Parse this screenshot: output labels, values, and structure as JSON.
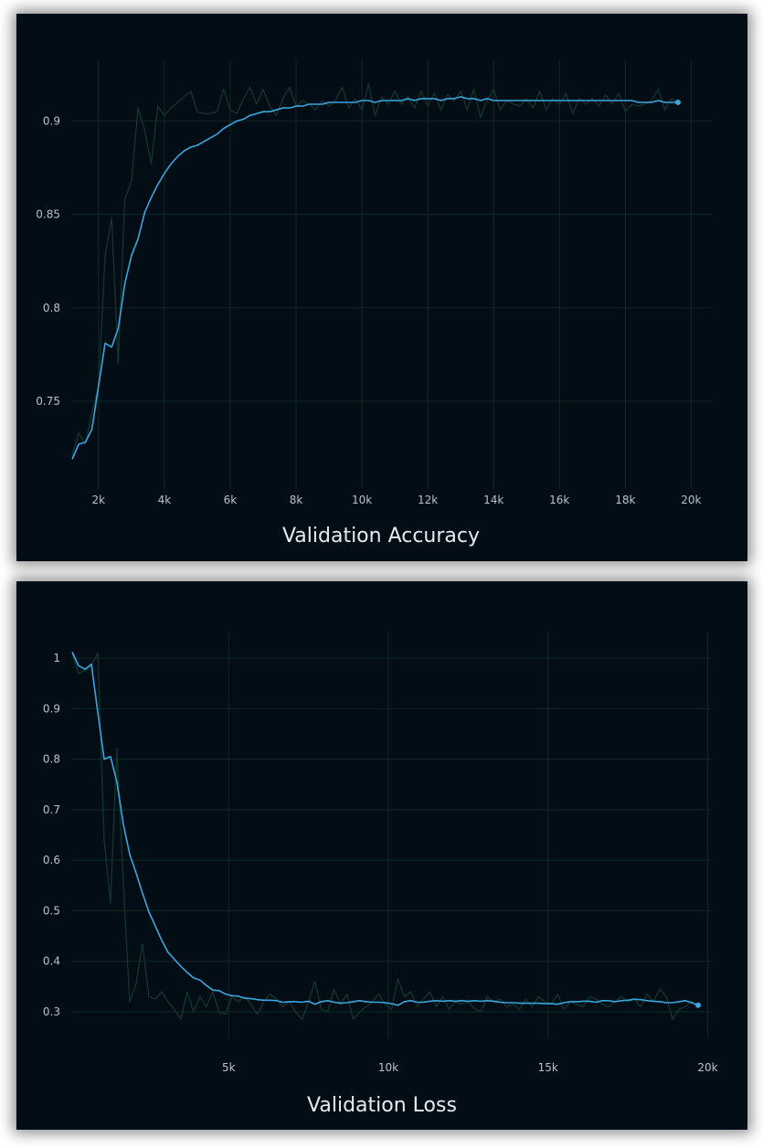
{
  "chart_data": [
    {
      "id": "acc",
      "type": "line",
      "title": "Validation Accuracy",
      "xlabel": "",
      "ylabel": "",
      "xlim": [
        1200,
        20600
      ],
      "ylim": [
        0.703,
        0.933
      ],
      "xticks": [
        2000,
        4000,
        6000,
        8000,
        10000,
        12000,
        14000,
        16000,
        18000,
        20000
      ],
      "xtick_labels": [
        "2k",
        "4k",
        "6k",
        "8k",
        "10k",
        "12k",
        "14k",
        "16k",
        "18k",
        "20k"
      ],
      "yticks": [
        0.75,
        0.8,
        0.85,
        0.9
      ],
      "ytick_labels": [
        "0.75",
        "0.8",
        "0.85",
        "0.9"
      ],
      "grid": true,
      "colors": {
        "smoothed": "#3aa6de",
        "raw": "#10352c",
        "grid": "#0f2a26",
        "background": "#020d16"
      },
      "series": [
        {
          "role": "raw",
          "x": [
            1200,
            1400,
            1600,
            1800,
            2000,
            2200,
            2400,
            2600,
            2800,
            3000,
            3200,
            3400,
            3600,
            3800,
            4000,
            4200,
            4400,
            4600,
            4800,
            5000,
            5200,
            5400,
            5600,
            5800,
            6000,
            6200,
            6400,
            6600,
            6800,
            7000,
            7200,
            7400,
            7600,
            7800,
            8000,
            8200,
            8400,
            8600,
            8800,
            9000,
            9200,
            9400,
            9600,
            9800,
            10000,
            10200,
            10400,
            10600,
            10800,
            11000,
            11200,
            11400,
            11600,
            11800,
            12000,
            12200,
            12400,
            12600,
            12800,
            13000,
            13200,
            13400,
            13600,
            13800,
            14000,
            14200,
            14400,
            14600,
            14800,
            15000,
            15200,
            15400,
            15600,
            15800,
            16000,
            16200,
            16400,
            16600,
            16800,
            17000,
            17200,
            17400,
            17600,
            17800,
            18000,
            18200,
            18400,
            18600,
            18800,
            19000,
            19200,
            19400,
            19600
          ],
          "values": [
            0.721,
            0.733,
            0.727,
            0.744,
            0.758,
            0.828,
            0.848,
            0.77,
            0.858,
            0.868,
            0.907,
            0.895,
            0.877,
            0.908,
            0.903,
            0.907,
            0.91,
            0.913,
            0.916,
            0.905,
            0.904,
            0.904,
            0.905,
            0.917,
            0.906,
            0.904,
            0.912,
            0.918,
            0.909,
            0.917,
            0.908,
            0.903,
            0.912,
            0.918,
            0.908,
            0.911,
            0.909,
            0.906,
            0.911,
            0.908,
            0.911,
            0.918,
            0.907,
            0.912,
            0.906,
            0.92,
            0.903,
            0.913,
            0.909,
            0.916,
            0.909,
            0.913,
            0.907,
            0.916,
            0.908,
            0.915,
            0.906,
            0.914,
            0.911,
            0.916,
            0.906,
            0.917,
            0.902,
            0.911,
            0.917,
            0.906,
            0.911,
            0.909,
            0.908,
            0.912,
            0.907,
            0.916,
            0.906,
            0.912,
            0.909,
            0.915,
            0.904,
            0.912,
            0.909,
            0.912,
            0.908,
            0.914,
            0.909,
            0.915,
            0.905,
            0.909,
            0.908,
            0.909,
            0.911,
            0.917,
            0.906,
            0.912,
            0.91
          ]
        },
        {
          "role": "smoothed",
          "x": [
            1200,
            1400,
            1600,
            1800,
            2000,
            2200,
            2400,
            2600,
            2800,
            3000,
            3200,
            3400,
            3600,
            3800,
            4000,
            4200,
            4400,
            4600,
            4800,
            5000,
            5200,
            5400,
            5600,
            5800,
            6000,
            6200,
            6400,
            6600,
            6800,
            7000,
            7200,
            7400,
            7600,
            7800,
            8000,
            8200,
            8400,
            8600,
            8800,
            9000,
            9200,
            9400,
            9600,
            9800,
            10000,
            10200,
            10400,
            10600,
            10800,
            11000,
            11200,
            11400,
            11600,
            11800,
            12000,
            12200,
            12400,
            12600,
            12800,
            13000,
            13200,
            13400,
            13600,
            13800,
            14000,
            14200,
            14400,
            14600,
            14800,
            15000,
            15200,
            15400,
            15600,
            15800,
            16000,
            16200,
            16400,
            16600,
            16800,
            17000,
            17200,
            17400,
            17600,
            17800,
            18000,
            18200,
            18400,
            18600,
            18800,
            19000,
            19200,
            19400,
            19600
          ],
          "values": [
            0.719,
            0.727,
            0.728,
            0.735,
            0.758,
            0.781,
            0.779,
            0.789,
            0.813,
            0.828,
            0.837,
            0.851,
            0.859,
            0.866,
            0.872,
            0.877,
            0.881,
            0.884,
            0.886,
            0.887,
            0.889,
            0.891,
            0.893,
            0.896,
            0.898,
            0.9,
            0.901,
            0.903,
            0.904,
            0.905,
            0.905,
            0.906,
            0.907,
            0.907,
            0.908,
            0.908,
            0.909,
            0.909,
            0.909,
            0.91,
            0.91,
            0.91,
            0.91,
            0.91,
            0.911,
            0.911,
            0.91,
            0.911,
            0.911,
            0.911,
            0.911,
            0.912,
            0.911,
            0.912,
            0.912,
            0.912,
            0.911,
            0.912,
            0.912,
            0.913,
            0.912,
            0.912,
            0.911,
            0.912,
            0.911,
            0.911,
            0.911,
            0.911,
            0.911,
            0.911,
            0.911,
            0.911,
            0.911,
            0.911,
            0.911,
            0.911,
            0.911,
            0.911,
            0.911,
            0.911,
            0.911,
            0.911,
            0.911,
            0.911,
            0.911,
            0.911,
            0.91,
            0.91,
            0.91,
            0.911,
            0.91,
            0.91,
            0.91
          ]
        }
      ]
    },
    {
      "id": "loss",
      "type": "line",
      "title": "Validation Loss",
      "xlabel": "",
      "ylabel": "",
      "xlim": [
        100,
        20100
      ],
      "ylim": [
        0.2475,
        1.0525
      ],
      "xticks": [
        5000,
        10000,
        15000,
        20000
      ],
      "xtick_labels": [
        "5k",
        "10k",
        "15k",
        "20k"
      ],
      "yticks": [
        0.3,
        0.4,
        0.5,
        0.6,
        0.7,
        0.8,
        0.9,
        1.0
      ],
      "ytick_labels": [
        "0.3",
        "0.4",
        "0.5",
        "0.6",
        "0.7",
        "0.8",
        "0.9",
        "1"
      ],
      "grid": true,
      "colors": {
        "smoothed": "#3aa6de",
        "raw": "#10352c",
        "grid": "#0f2a26",
        "background": "#020d16"
      },
      "series": [
        {
          "role": "raw",
          "x": [
            100,
            300,
            500,
            700,
            900,
            1100,
            1300,
            1500,
            1700,
            1900,
            2100,
            2300,
            2500,
            2700,
            2900,
            3100,
            3300,
            3500,
            3700,
            3900,
            4100,
            4300,
            4500,
            4700,
            4900,
            5100,
            5300,
            5500,
            5700,
            5900,
            6100,
            6300,
            6500,
            6700,
            6900,
            7100,
            7300,
            7500,
            7700,
            7900,
            8100,
            8300,
            8500,
            8700,
            8900,
            9100,
            9300,
            9500,
            9700,
            9900,
            10100,
            10300,
            10500,
            10700,
            10900,
            11100,
            11300,
            11500,
            11700,
            11900,
            12100,
            12300,
            12500,
            12700,
            12900,
            13100,
            13300,
            13500,
            13700,
            13900,
            14100,
            14300,
            14500,
            14700,
            14900,
            15100,
            15300,
            15500,
            15700,
            15900,
            16100,
            16300,
            16500,
            16700,
            16900,
            17100,
            17300,
            17500,
            17700,
            17900,
            18100,
            18300,
            18500,
            18700,
            18900,
            19100,
            19300,
            19500,
            19700
          ],
          "values": [
            1.01,
            0.97,
            0.975,
            0.985,
            1.01,
            0.64,
            0.515,
            0.82,
            0.56,
            0.32,
            0.355,
            0.435,
            0.33,
            0.325,
            0.34,
            0.32,
            0.305,
            0.285,
            0.34,
            0.3,
            0.33,
            0.31,
            0.34,
            0.3,
            0.295,
            0.33,
            0.32,
            0.33,
            0.315,
            0.295,
            0.32,
            0.335,
            0.325,
            0.31,
            0.32,
            0.3,
            0.285,
            0.32,
            0.36,
            0.305,
            0.3,
            0.345,
            0.315,
            0.335,
            0.285,
            0.3,
            0.31,
            0.32,
            0.335,
            0.315,
            0.305,
            0.365,
            0.33,
            0.34,
            0.31,
            0.325,
            0.34,
            0.31,
            0.33,
            0.305,
            0.32,
            0.315,
            0.32,
            0.305,
            0.3,
            0.33,
            0.32,
            0.325,
            0.31,
            0.315,
            0.305,
            0.325,
            0.31,
            0.33,
            0.32,
            0.315,
            0.335,
            0.305,
            0.32,
            0.315,
            0.31,
            0.33,
            0.325,
            0.315,
            0.31,
            0.32,
            0.33,
            0.32,
            0.325,
            0.31,
            0.335,
            0.32,
            0.345,
            0.33,
            0.285,
            0.305,
            0.31,
            0.32,
            0.31
          ]
        },
        {
          "role": "smoothed",
          "x": [
            100,
            300,
            500,
            700,
            900,
            1100,
            1300,
            1500,
            1700,
            1900,
            2100,
            2300,
            2500,
            2700,
            2900,
            3100,
            3300,
            3500,
            3700,
            3900,
            4100,
            4300,
            4500,
            4700,
            4900,
            5100,
            5300,
            5500,
            5700,
            5900,
            6100,
            6300,
            6500,
            6700,
            6900,
            7100,
            7300,
            7500,
            7700,
            7900,
            8100,
            8300,
            8500,
            8700,
            8900,
            9100,
            9300,
            9500,
            9700,
            9900,
            10100,
            10300,
            10500,
            10700,
            10900,
            11100,
            11300,
            11500,
            11700,
            11900,
            12100,
            12300,
            12500,
            12700,
            12900,
            13100,
            13300,
            13500,
            13700,
            13900,
            14100,
            14300,
            14500,
            14700,
            14900,
            15100,
            15300,
            15500,
            15700,
            15900,
            16100,
            16300,
            16500,
            16700,
            16900,
            17100,
            17300,
            17500,
            17700,
            17900,
            18100,
            18300,
            18500,
            18700,
            18900,
            19100,
            19300,
            19500,
            19700
          ],
          "values": [
            1.012,
            0.985,
            0.978,
            0.988,
            0.893,
            0.8,
            0.805,
            0.755,
            0.672,
            0.612,
            0.575,
            0.535,
            0.498,
            0.47,
            0.442,
            0.418,
            0.404,
            0.39,
            0.378,
            0.367,
            0.363,
            0.352,
            0.343,
            0.342,
            0.335,
            0.332,
            0.331,
            0.327,
            0.326,
            0.324,
            0.323,
            0.323,
            0.322,
            0.319,
            0.32,
            0.32,
            0.319,
            0.321,
            0.315,
            0.32,
            0.322,
            0.319,
            0.317,
            0.318,
            0.32,
            0.322,
            0.32,
            0.319,
            0.319,
            0.318,
            0.316,
            0.313,
            0.32,
            0.322,
            0.319,
            0.319,
            0.321,
            0.322,
            0.321,
            0.322,
            0.321,
            0.322,
            0.321,
            0.322,
            0.321,
            0.322,
            0.321,
            0.319,
            0.318,
            0.318,
            0.317,
            0.317,
            0.317,
            0.317,
            0.316,
            0.316,
            0.315,
            0.318,
            0.32,
            0.32,
            0.321,
            0.321,
            0.319,
            0.322,
            0.322,
            0.32,
            0.322,
            0.323,
            0.325,
            0.324,
            0.322,
            0.321,
            0.32,
            0.318,
            0.318,
            0.32,
            0.322,
            0.318,
            0.313
          ]
        }
      ]
    }
  ]
}
